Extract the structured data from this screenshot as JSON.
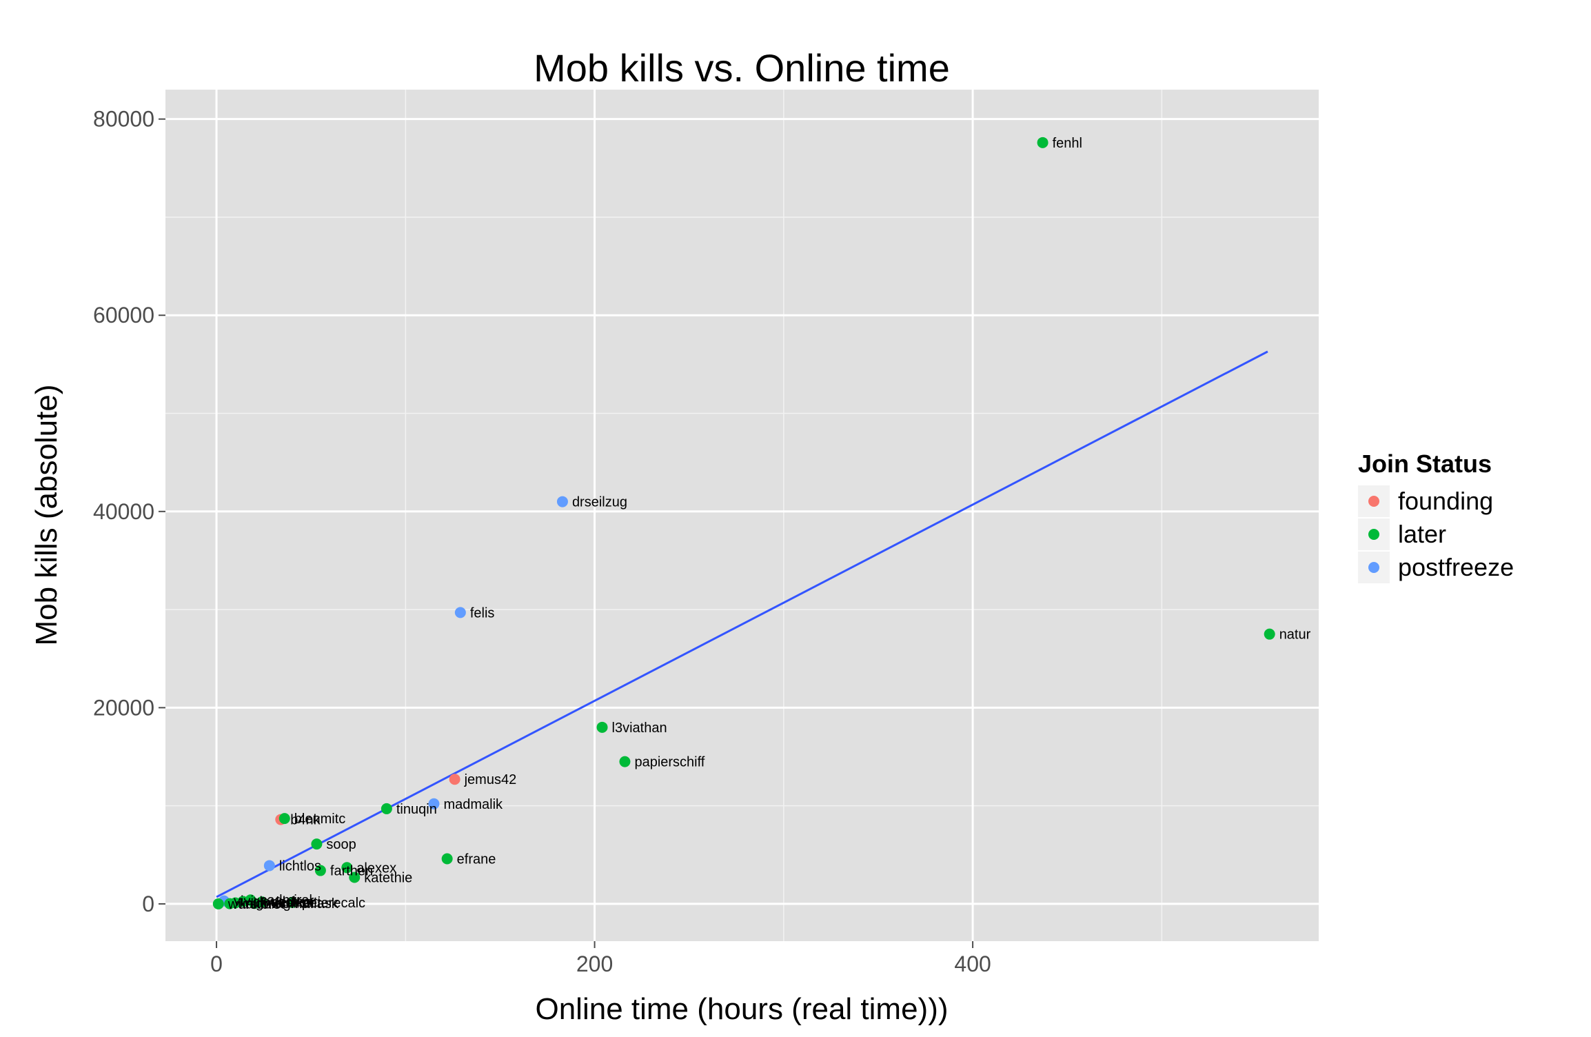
{
  "chart_data": {
    "type": "scatter",
    "title": "Mob kills vs. Online time",
    "xlabel": "Online time (hours (real time)))",
    "ylabel": "Mob kills (absolute)",
    "xlim": [
      -27,
      583
    ],
    "ylim": [
      -3800,
      83000
    ],
    "x_ticks": [
      0,
      200,
      400
    ],
    "y_ticks": [
      0,
      20000,
      40000,
      60000,
      80000
    ],
    "x_tick_labels": [
      "0",
      "200",
      "400"
    ],
    "y_tick_labels": [
      "0",
      "20000",
      "40000",
      "60000",
      "80000"
    ],
    "grid": true,
    "background": "#e0e0e0",
    "legend": {
      "title": "Join Status",
      "position": "right",
      "entries": [
        {
          "label": "founding",
          "color": "#f8766d"
        },
        {
          "label": "later",
          "color": "#00ba38"
        },
        {
          "label": "postfreeze",
          "color": "#619cff"
        }
      ]
    },
    "trend_line": {
      "color": "#3355ff",
      "x": [
        0,
        556
      ],
      "y": [
        700,
        56300
      ]
    },
    "points": [
      {
        "label": "fenhl",
        "x": 437,
        "y": 77600,
        "group": "later"
      },
      {
        "label": "natur",
        "x": 557,
        "y": 27500,
        "group": "later"
      },
      {
        "label": "drseilzug",
        "x": 183,
        "y": 41000,
        "group": "postfreeze"
      },
      {
        "label": "felis",
        "x": 129,
        "y": 29700,
        "group": "postfreeze"
      },
      {
        "label": "l3viathan",
        "x": 204,
        "y": 18000,
        "group": "later"
      },
      {
        "label": "papierschiff",
        "x": 216,
        "y": 14500,
        "group": "later"
      },
      {
        "label": "jemus42",
        "x": 126,
        "y": 12700,
        "group": "founding"
      },
      {
        "label": "madmalik",
        "x": 115,
        "y": 10200,
        "group": "postfreeze"
      },
      {
        "label": "tinuqin",
        "x": 90,
        "y": 9700,
        "group": "later"
      },
      {
        "label": "b4nk",
        "x": 34,
        "y": 8600,
        "group": "founding"
      },
      {
        "label": "blenmitc",
        "x": 36,
        "y": 8700,
        "group": "later"
      },
      {
        "label": "soop",
        "x": 53,
        "y": 6100,
        "group": "later"
      },
      {
        "label": "efrane",
        "x": 122,
        "y": 4600,
        "group": "later"
      },
      {
        "label": "lichtlos",
        "x": 28,
        "y": 3900,
        "group": "postfreeze"
      },
      {
        "label": "alexex",
        "x": 69,
        "y": 3700,
        "group": "later"
      },
      {
        "label": "farthen",
        "x": 55,
        "y": 3400,
        "group": "later"
      },
      {
        "label": "katethie",
        "x": 73,
        "y": 2700,
        "group": "later"
      },
      {
        "label": "sadmiral",
        "x": 18,
        "y": 400,
        "group": "later"
      },
      {
        "label": "cloudcleo",
        "x": 14,
        "y": 250,
        "group": "later"
      },
      {
        "label": "derbasti",
        "x": 24,
        "y": 200,
        "group": "later"
      },
      {
        "label": "peterecalc",
        "x": 40,
        "y": 150,
        "group": "later"
      },
      {
        "label": "vivi",
        "x": 4,
        "y": 300,
        "group": "postfreeze"
      },
      {
        "label": "magmaflask",
        "x": 20,
        "y": 50,
        "group": "later"
      },
      {
        "label": "nightstalker",
        "x": 10,
        "y": 100,
        "group": "later"
      },
      {
        "label": "wurstbrot",
        "x": 1,
        "y": 0,
        "group": "later"
      },
      {
        "label": "kalifex",
        "x": 7,
        "y": 20,
        "group": "later"
      }
    ]
  }
}
